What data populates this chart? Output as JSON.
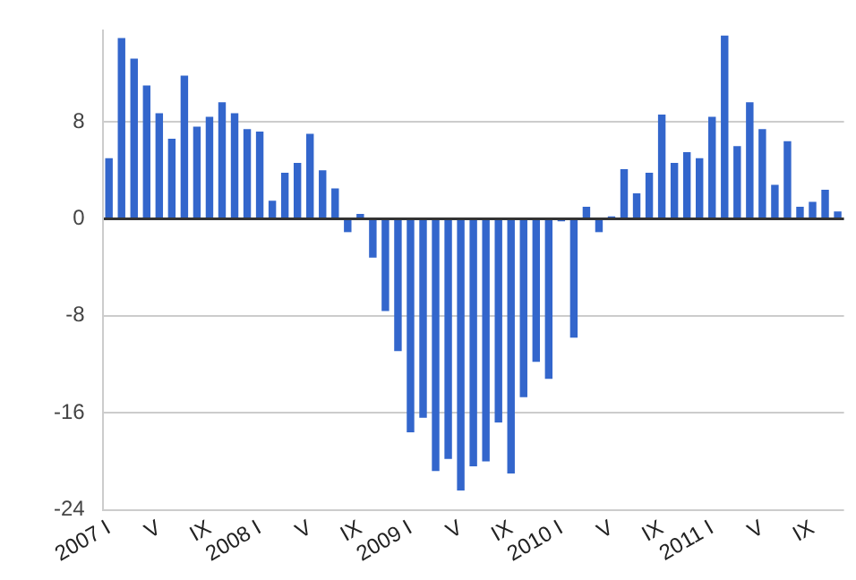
{
  "chart_data": {
    "type": "bar",
    "categories": [
      "2007 I",
      null,
      null,
      null,
      "V",
      null,
      null,
      null,
      "IX",
      null,
      null,
      null,
      "2008 I",
      null,
      null,
      null,
      "V",
      null,
      null,
      null,
      "IX",
      null,
      null,
      null,
      "2009 I",
      null,
      null,
      null,
      "V",
      null,
      null,
      null,
      "IX",
      null,
      null,
      null,
      "2010 I",
      null,
      null,
      null,
      "V",
      null,
      null,
      null,
      "IX",
      null,
      null,
      null,
      "2011 I",
      null,
      null,
      null,
      "V",
      null,
      null,
      null,
      "IX",
      null,
      null
    ],
    "values": [
      5.0,
      14.9,
      13.2,
      11.0,
      8.7,
      6.6,
      11.8,
      7.6,
      8.4,
      9.6,
      8.7,
      7.4,
      7.2,
      1.5,
      3.8,
      4.6,
      7.0,
      4.0,
      2.5,
      -1.1,
      0.4,
      -3.2,
      -7.6,
      -10.9,
      -17.6,
      -16.4,
      -20.8,
      -19.8,
      -22.4,
      -20.4,
      -20.0,
      -16.8,
      -21.0,
      -14.7,
      -11.8,
      -13.2,
      -0.2,
      -9.8,
      1.0,
      -1.1,
      0.2,
      4.1,
      2.1,
      3.8,
      8.6,
      4.6,
      5.5,
      5.0,
      8.4,
      15.1,
      6.0,
      9.6,
      7.4,
      2.8,
      6.4,
      1.0,
      1.4,
      2.4,
      0.6
    ],
    "color": "#3366cc",
    "ylim": [
      -24,
      15.5
    ],
    "yticks": [
      -24,
      -16,
      -8,
      0,
      8
    ],
    "grid": "y",
    "legend": false
  }
}
